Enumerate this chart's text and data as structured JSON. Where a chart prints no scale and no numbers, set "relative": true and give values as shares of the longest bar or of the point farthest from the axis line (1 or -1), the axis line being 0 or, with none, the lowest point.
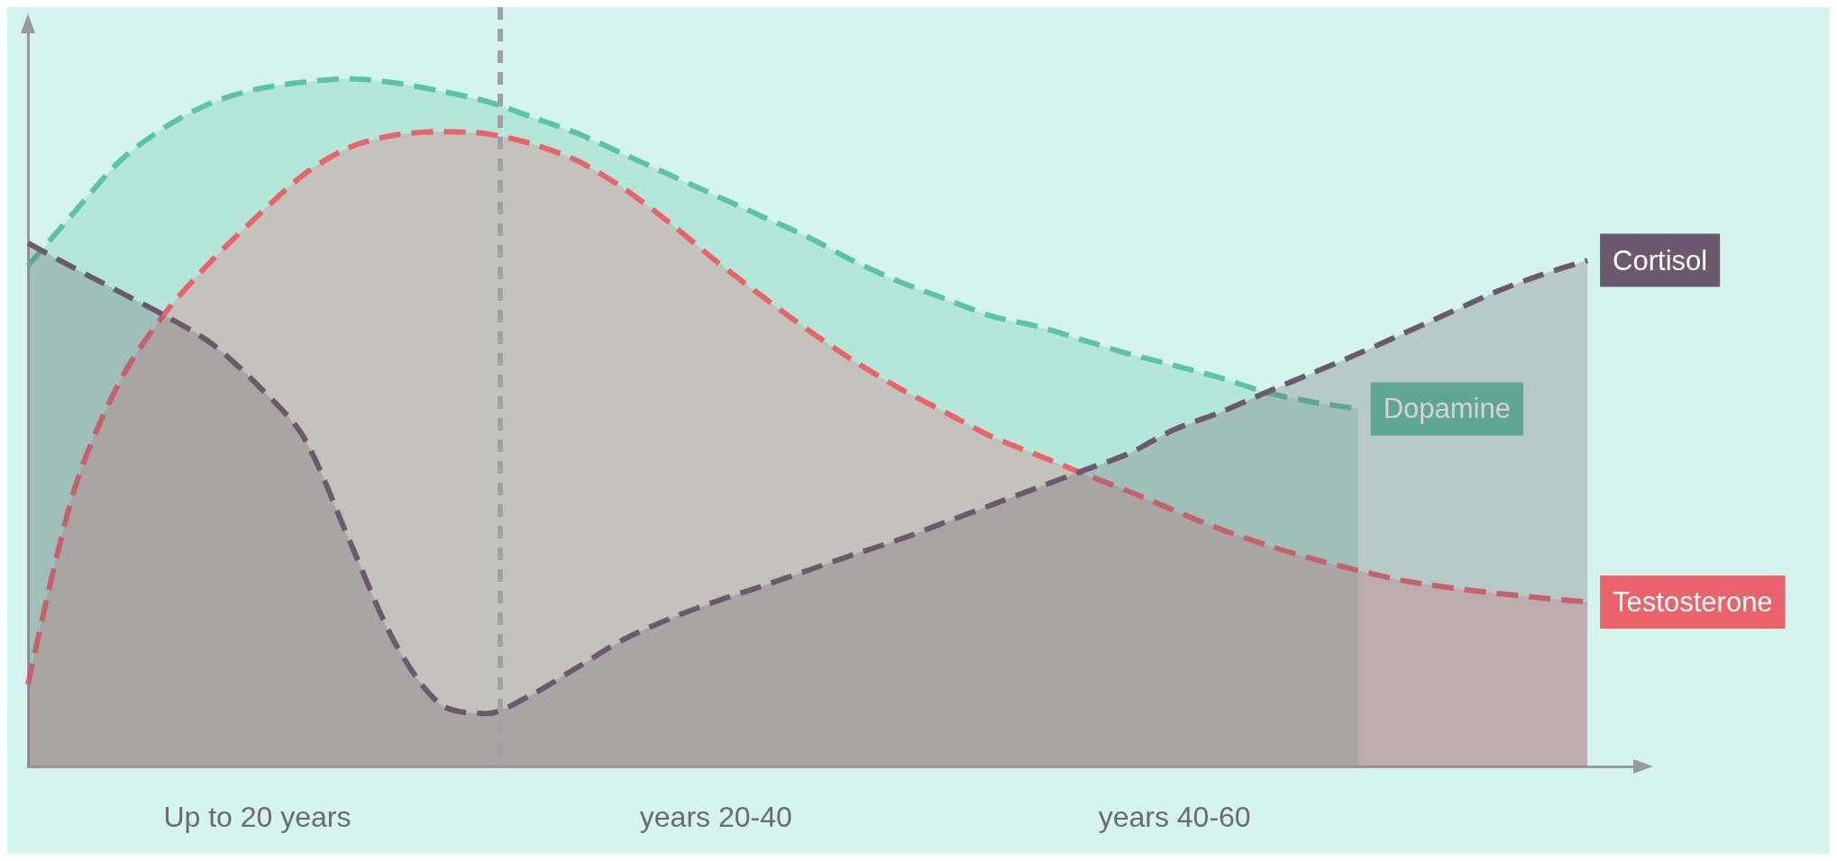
{
  "chart_data": {
    "type": "area",
    "relative": true,
    "line_style": "dashed",
    "marker": "none",
    "grid": false,
    "legend": false,
    "categories": [
      null,
      null,
      null,
      null,
      null,
      "Up to 20 years",
      null,
      null,
      null,
      null,
      null,
      null,
      null,
      null,
      null,
      "years 20-40",
      null,
      null,
      null,
      null,
      null,
      null,
      null,
      null,
      null,
      "years 40-60",
      null,
      null,
      null,
      null,
      null,
      null,
      null,
      null,
      null,
      null
    ],
    "series": [
      {
        "name": "Dopamine",
        "color": "#5cc4a4",
        "values": [
          0.728,
          0.805,
          0.88,
          0.93,
          0.965,
          0.985,
          0.995,
          1,
          0.994,
          0.982,
          0.967,
          0.944,
          0.92,
          0.89,
          0.86,
          0.83,
          0.8,
          0.77,
          0.735,
          0.705,
          0.68,
          0.655,
          0.64,
          0.62,
          0.6,
          0.583,
          0.565,
          0.544,
          0.53,
          0.52,
          null,
          null,
          null,
          null,
          null,
          null
        ]
      },
      {
        "name": "Testosterone",
        "color": "#e8646a",
        "values": [
          0.119,
          0.4,
          0.56,
          0.66,
          0.735,
          0.8,
          0.86,
          0.9,
          0.918,
          0.923,
          0.92,
          0.905,
          0.88,
          0.84,
          0.79,
          0.735,
          0.684,
          0.635,
          0.59,
          0.55,
          0.515,
          0.48,
          0.453,
          0.426,
          0.4,
          0.372,
          0.345,
          0.322,
          0.302,
          0.285,
          0.27,
          0.26,
          0.252,
          0.245,
          0.239,
          null
        ]
      },
      {
        "name": "Cortisol",
        "color": "#6b5a6b",
        "values": [
          0.761,
          0.725,
          0.69,
          0.655,
          0.615,
          0.555,
          0.48,
          0.33,
          0.18,
          0.09,
          0.077,
          0.105,
          0.145,
          0.185,
          0.215,
          0.24,
          0.262,
          0.285,
          0.308,
          0.33,
          0.355,
          0.38,
          0.405,
          0.43,
          0.455,
          0.49,
          0.515,
          0.544,
          0.572,
          0.6,
          0.63,
          0.66,
          0.69,
          0.715,
          0.736,
          null
        ]
      }
    ]
  }
}
